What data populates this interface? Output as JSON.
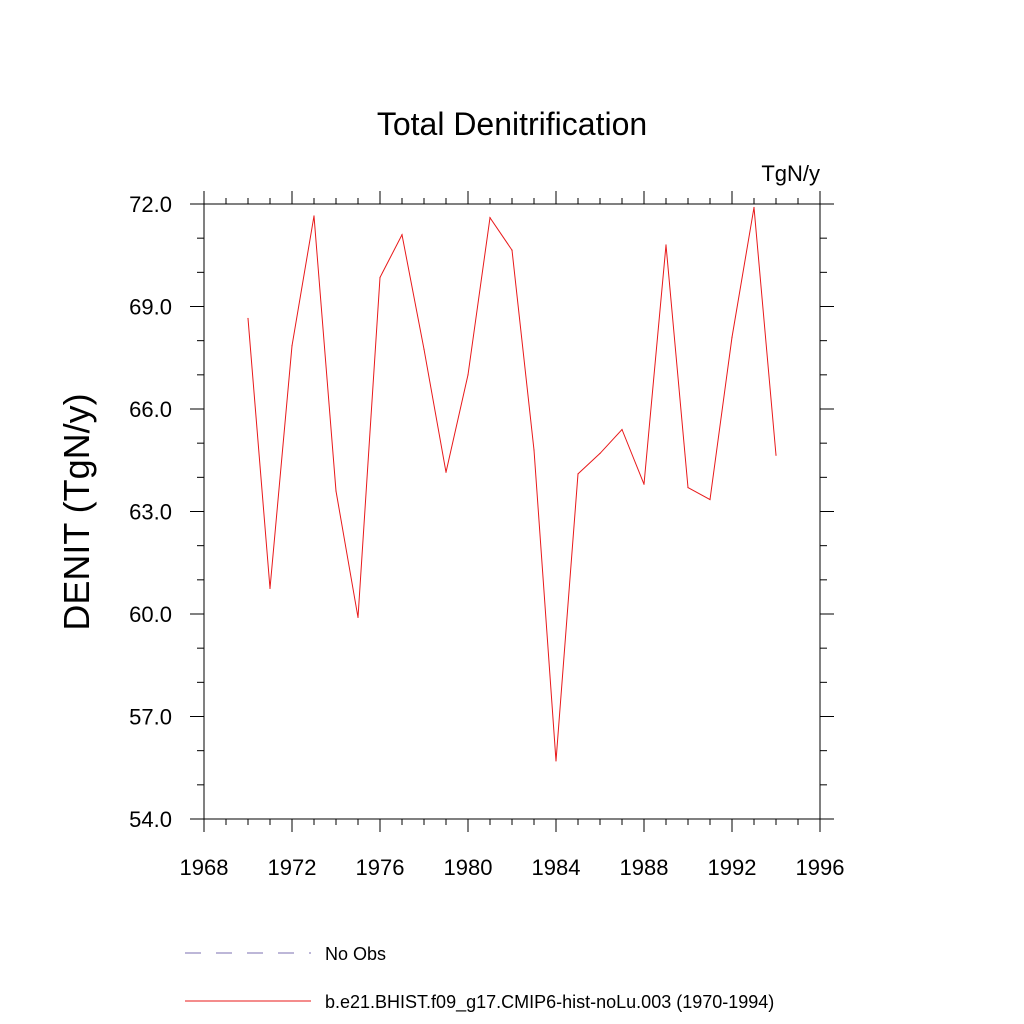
{
  "chart_data": {
    "type": "line",
    "title": "Total Denitrification",
    "units_label": "TgN/y",
    "ylabel": "DENIT  (TgN/y)",
    "xlabel": "",
    "xlim": [
      1968,
      1996
    ],
    "ylim": [
      54.0,
      72.0
    ],
    "x_ticks": [
      1968,
      1972,
      1976,
      1980,
      1984,
      1988,
      1992,
      1996
    ],
    "x_tick_labels": [
      "1968",
      "1972",
      "1976",
      "1980",
      "1984",
      "1988",
      "1992",
      "1996"
    ],
    "y_ticks": [
      54.0,
      57.0,
      60.0,
      63.0,
      66.0,
      69.0,
      72.0
    ],
    "y_tick_labels": [
      "54.0",
      "57.0",
      "60.0",
      "63.0",
      "66.0",
      "69.0",
      "72.0"
    ],
    "grid": false,
    "legend_placement": "bottom",
    "series": [
      {
        "name": "No Obs",
        "color": "#7b6fb0",
        "style": "dashed",
        "x": [],
        "y": []
      },
      {
        "name": "b.e21.BHIST.f09_g17.CMIP6-hist-noLu.003 (1970-1994)",
        "color": "#e8191a",
        "style": "solid",
        "x": [
          1970,
          1971,
          1972,
          1973,
          1974,
          1975,
          1976,
          1977,
          1978,
          1979,
          1980,
          1981,
          1982,
          1983,
          1984,
          1985,
          1986,
          1987,
          1988,
          1989,
          1990,
          1991,
          1992,
          1993,
          1994
        ],
        "y": [
          68.65,
          60.75,
          67.85,
          71.65,
          63.6,
          59.9,
          69.85,
          71.1,
          67.75,
          64.15,
          67.0,
          71.6,
          70.65,
          64.8,
          55.7,
          64.1,
          64.7,
          65.4,
          63.8,
          70.8,
          63.7,
          63.35,
          68.1,
          71.9,
          64.65
        ]
      }
    ]
  }
}
